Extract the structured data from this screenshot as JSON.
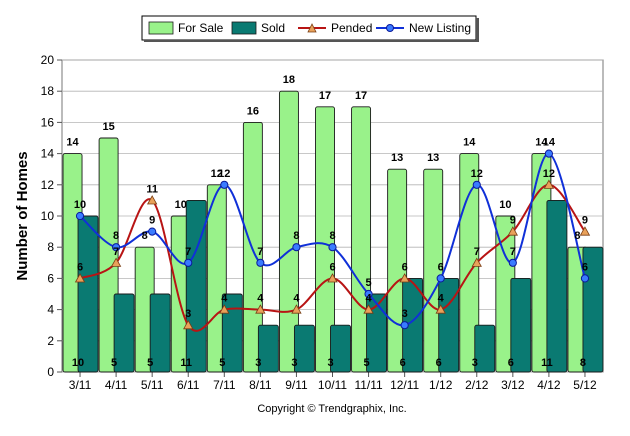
{
  "chart_data": {
    "type": "bar",
    "categories": [
      "3/11",
      "4/11",
      "5/11",
      "6/11",
      "7/11",
      "8/11",
      "9/11",
      "10/11",
      "11/11",
      "12/11",
      "1/12",
      "2/12",
      "3/12",
      "4/12",
      "5/12"
    ],
    "series": [
      {
        "name": "For Sale",
        "type": "bar",
        "color": "#99f28a",
        "values": [
          14,
          15,
          8,
          10,
          12,
          16,
          18,
          17,
          17,
          13,
          13,
          14,
          10,
          14,
          8
        ]
      },
      {
        "name": "Sold",
        "type": "bar",
        "color": "#0a7a72",
        "values": [
          10,
          5,
          5,
          11,
          5,
          3,
          3,
          3,
          5,
          6,
          6,
          3,
          6,
          11,
          8
        ]
      },
      {
        "name": "Pended",
        "type": "line",
        "color": "#b81414",
        "marker": "triangle",
        "values": [
          6,
          7,
          11,
          3,
          4,
          4,
          4,
          6,
          4,
          6,
          4,
          7,
          9,
          12,
          9
        ]
      },
      {
        "name": "New Listing",
        "type": "line",
        "color": "#1030d8",
        "marker": "circle",
        "values": [
          10,
          8,
          9,
          7,
          12,
          7,
          8,
          8,
          5,
          3,
          6,
          12,
          7,
          14,
          6
        ]
      }
    ],
    "ylabel": "Number of Homes",
    "xlabel": "",
    "ylim": [
      0,
      20
    ],
    "yticks": [
      0,
      2,
      4,
      6,
      8,
      10,
      12,
      14,
      16,
      18,
      20
    ],
    "grid": true,
    "legend_position": "top",
    "copyright": "Copyright © Trendgraphix, Inc."
  }
}
